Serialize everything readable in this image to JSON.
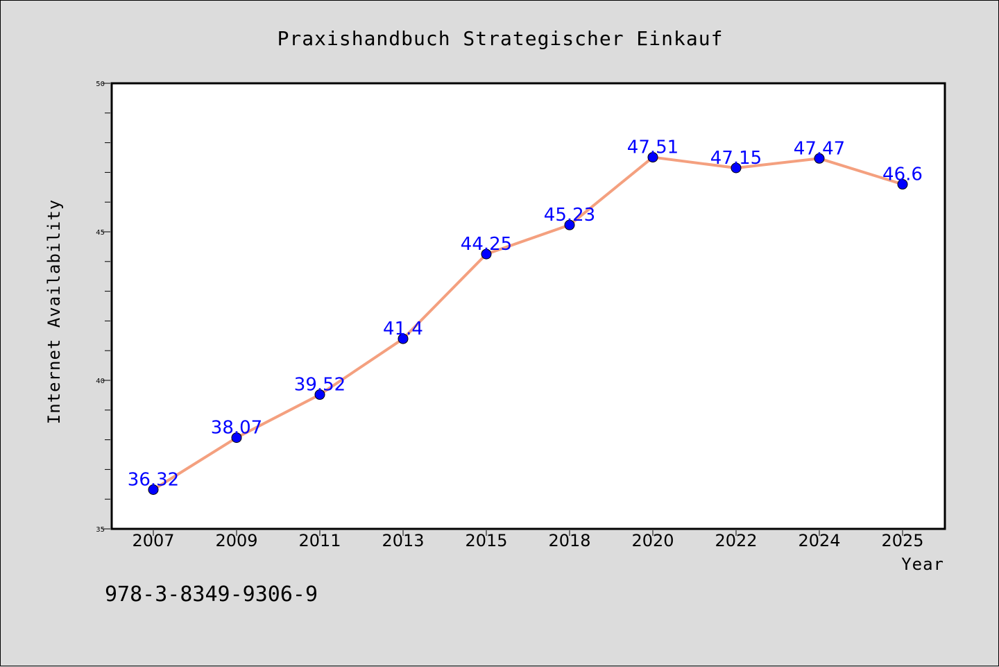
{
  "chart_data": {
    "type": "line",
    "title": "Praxishandbuch Strategischer Einkauf",
    "xlabel": "Year",
    "ylabel": "Internet Availability",
    "categories": [
      "2007",
      "2009",
      "2011",
      "2013",
      "2015",
      "2018",
      "2020",
      "2022",
      "2024",
      "2025"
    ],
    "series": [
      {
        "values": [
          36.32,
          38.07,
          39.52,
          41.4,
          44.25,
          45.23,
          47.51,
          47.15,
          47.47,
          46.6
        ]
      }
    ],
    "data_labels": [
      "36.32",
      "38.07",
      "39.52",
      "41.4",
      "44.25",
      "45.23",
      "47.51",
      "47.15",
      "47.47",
      "46.6"
    ],
    "ylim": [
      35,
      50
    ],
    "yticks": [
      "35",
      "40",
      "45",
      "50"
    ],
    "grid": false,
    "legend": "none",
    "line_color": "#f4a07f",
    "marker_color": "#0000ff",
    "label_color": "#0000ff"
  },
  "footer": {
    "isbn": "978-3-8349-9306-9"
  }
}
